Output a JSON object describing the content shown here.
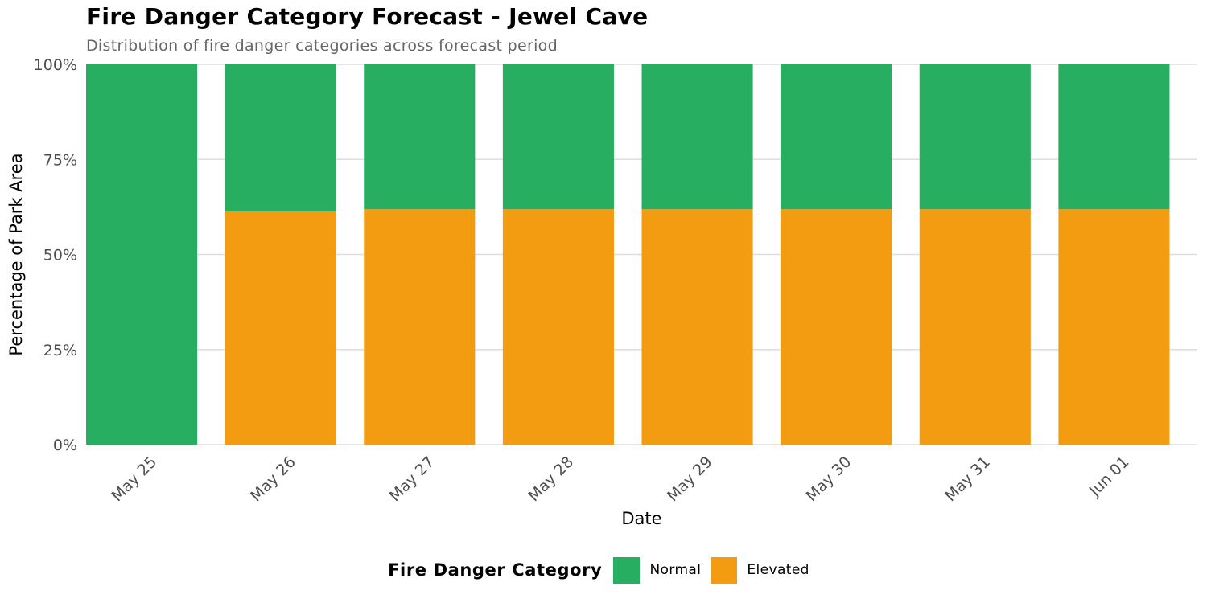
{
  "chart_data": {
    "type": "bar",
    "stacked": true,
    "title": "Fire Danger Category Forecast - Jewel Cave",
    "subtitle": "Distribution of fire danger categories across forecast period",
    "xlabel": "Date",
    "ylabel": "Percentage of Park Area",
    "categories": [
      "May 25",
      "May 26",
      "May 27",
      "May 28",
      "May 29",
      "May 30",
      "May 31",
      "Jun 01"
    ],
    "series": [
      {
        "name": "Elevated",
        "color": "#F39C12",
        "values": [
          0,
          61.3,
          61.9,
          61.9,
          61.9,
          61.9,
          61.9,
          61.9
        ]
      },
      {
        "name": "Normal",
        "color": "#27AE60",
        "values": [
          100,
          38.7,
          38.1,
          38.1,
          38.1,
          38.1,
          38.1,
          38.1
        ]
      }
    ],
    "ylim": [
      0,
      100
    ],
    "yticks": [
      0,
      25,
      50,
      75,
      100
    ],
    "ytick_labels": [
      "0%",
      "25%",
      "50%",
      "75%",
      "100%"
    ],
    "grid": true,
    "legend": {
      "title": "Fire Danger Category",
      "position": "bottom",
      "entries": [
        {
          "label": "Normal",
          "color": "#27AE60"
        },
        {
          "label": "Elevated",
          "color": "#F39C12"
        }
      ]
    }
  }
}
